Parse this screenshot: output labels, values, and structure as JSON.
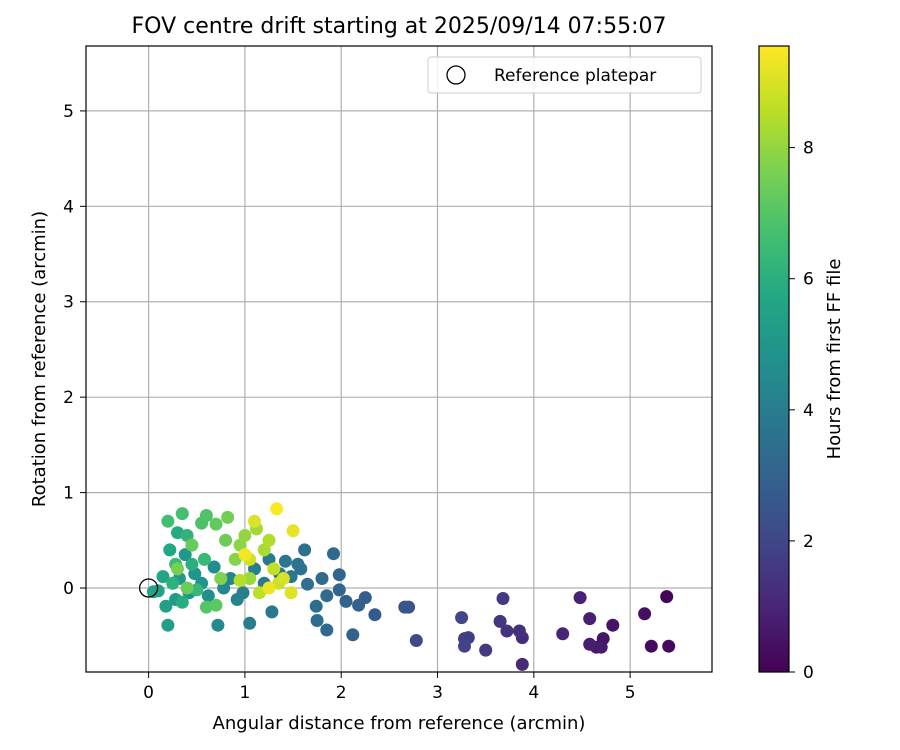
{
  "chart_data": {
    "type": "scatter",
    "title": "FOV centre drift starting at 2025/09/14 07:55:07",
    "xlabel": "Angular distance from reference (arcmin)",
    "ylabel": "Rotation from reference (arcmin)",
    "xlim": [
      -0.65,
      5.85
    ],
    "ylim": [
      -0.88,
      5.68
    ],
    "xticks": [
      0,
      1,
      2,
      3,
      4,
      5
    ],
    "yticks": [
      0,
      1,
      2,
      3,
      4,
      5
    ],
    "grid": true,
    "legend": {
      "location": "top-right",
      "entries": [
        "Reference platepar"
      ]
    },
    "reference_point": {
      "x": 0,
      "y": 0,
      "marker": "open-circle",
      "label": "Reference platepar"
    },
    "colorbar": {
      "label": "Hours from first FF file",
      "colormap": "viridis",
      "range": [
        0,
        9.55
      ],
      "ticks": [
        0,
        2,
        4,
        6,
        8
      ]
    },
    "points": [
      {
        "x": 5.38,
        "y": -0.09,
        "c": 0.1
      },
      {
        "x": 5.4,
        "y": -0.61,
        "c": 0.2
      },
      {
        "x": 5.22,
        "y": -0.61,
        "c": 0.3
      },
      {
        "x": 5.15,
        "y": -0.27,
        "c": 0.4
      },
      {
        "x": 4.82,
        "y": -0.39,
        "c": 0.5
      },
      {
        "x": 4.72,
        "y": -0.53,
        "c": 0.55
      },
      {
        "x": 4.65,
        "y": -0.62,
        "c": 0.6
      },
      {
        "x": 4.7,
        "y": -0.62,
        "c": 0.7
      },
      {
        "x": 4.58,
        "y": -0.59,
        "c": 0.8
      },
      {
        "x": 4.58,
        "y": -0.32,
        "c": 0.85
      },
      {
        "x": 4.48,
        "y": -0.1,
        "c": 0.9
      },
      {
        "x": 4.3,
        "y": -0.48,
        "c": 1.0
      },
      {
        "x": 3.88,
        "y": -0.8,
        "c": 1.1
      },
      {
        "x": 3.88,
        "y": -0.52,
        "c": 1.2
      },
      {
        "x": 3.85,
        "y": -0.45,
        "c": 1.3
      },
      {
        "x": 3.72,
        "y": -0.45,
        "c": 1.4
      },
      {
        "x": 3.65,
        "y": -0.35,
        "c": 1.5
      },
      {
        "x": 3.68,
        "y": -0.11,
        "c": 1.55
      },
      {
        "x": 3.5,
        "y": -0.65,
        "c": 1.6
      },
      {
        "x": 3.32,
        "y": -0.52,
        "c": 1.7
      },
      {
        "x": 3.28,
        "y": -0.53,
        "c": 1.8
      },
      {
        "x": 3.28,
        "y": -0.61,
        "c": 1.9
      },
      {
        "x": 3.25,
        "y": -0.31,
        "c": 2.0
      },
      {
        "x": 2.78,
        "y": -0.55,
        "c": 2.2
      },
      {
        "x": 2.7,
        "y": -0.2,
        "c": 2.4
      },
      {
        "x": 2.66,
        "y": -0.2,
        "c": 2.5
      },
      {
        "x": 2.35,
        "y": -0.28,
        "c": 2.7
      },
      {
        "x": 2.25,
        "y": -0.1,
        "c": 2.8
      },
      {
        "x": 2.18,
        "y": -0.18,
        "c": 2.9
      },
      {
        "x": 2.12,
        "y": -0.49,
        "c": 3.0
      },
      {
        "x": 2.05,
        "y": -0.14,
        "c": 3.0
      },
      {
        "x": 1.98,
        "y": 0.14,
        "c": 3.1
      },
      {
        "x": 1.98,
        "y": -0.02,
        "c": 3.1
      },
      {
        "x": 1.92,
        "y": 0.36,
        "c": 3.2
      },
      {
        "x": 1.85,
        "y": -0.44,
        "c": 3.2
      },
      {
        "x": 1.85,
        "y": -0.08,
        "c": 3.3
      },
      {
        "x": 1.8,
        "y": 0.1,
        "c": 3.3
      },
      {
        "x": 1.75,
        "y": -0.34,
        "c": 3.4
      },
      {
        "x": 1.74,
        "y": -0.19,
        "c": 3.4
      },
      {
        "x": 1.65,
        "y": 0.04,
        "c": 3.5
      },
      {
        "x": 1.62,
        "y": 0.4,
        "c": 3.5
      },
      {
        "x": 1.58,
        "y": 0.2,
        "c": 3.6
      },
      {
        "x": 1.55,
        "y": 0.25,
        "c": 3.6
      },
      {
        "x": 1.48,
        "y": 0.12,
        "c": 3.7
      },
      {
        "x": 1.42,
        "y": 0.28,
        "c": 3.7
      },
      {
        "x": 1.36,
        "y": 0.15,
        "c": 3.8
      },
      {
        "x": 1.28,
        "y": -0.25,
        "c": 3.8
      },
      {
        "x": 1.25,
        "y": 0.3,
        "c": 3.9
      },
      {
        "x": 1.2,
        "y": 0.05,
        "c": 3.9
      },
      {
        "x": 1.1,
        "y": 0.2,
        "c": 4.0
      },
      {
        "x": 1.05,
        "y": -0.37,
        "c": 4.0
      },
      {
        "x": 0.98,
        "y": -0.05,
        "c": 4.1
      },
      {
        "x": 0.92,
        "y": -0.12,
        "c": 4.2
      },
      {
        "x": 0.85,
        "y": 0.1,
        "c": 4.3
      },
      {
        "x": 0.78,
        "y": 0.0,
        "c": 4.4
      },
      {
        "x": 0.72,
        "y": -0.39,
        "c": 4.5
      },
      {
        "x": 0.68,
        "y": 0.22,
        "c": 4.6
      },
      {
        "x": 0.62,
        "y": -0.08,
        "c": 4.7
      },
      {
        "x": 0.55,
        "y": 0.05,
        "c": 4.8
      },
      {
        "x": 0.48,
        "y": 0.15,
        "c": 4.9
      },
      {
        "x": 0.42,
        "y": -0.05,
        "c": 5.0
      },
      {
        "x": 0.38,
        "y": 0.35,
        "c": 5.0
      },
      {
        "x": 0.32,
        "y": 0.1,
        "c": 5.1
      },
      {
        "x": 0.28,
        "y": -0.12,
        "c": 5.2
      },
      {
        "x": 0.2,
        "y": -0.39,
        "c": 5.3
      },
      {
        "x": 0.18,
        "y": -0.19,
        "c": 5.4
      },
      {
        "x": 0.1,
        "y": -0.03,
        "c": 5.5
      },
      {
        "x": 0.05,
        "y": -0.04,
        "c": 5.5
      },
      {
        "x": 0.15,
        "y": 0.12,
        "c": 5.6
      },
      {
        "x": 0.22,
        "y": 0.4,
        "c": 5.7
      },
      {
        "x": 0.3,
        "y": 0.58,
        "c": 5.8
      },
      {
        "x": 0.35,
        "y": -0.15,
        "c": 5.9
      },
      {
        "x": 0.45,
        "y": 0.25,
        "c": 6.0
      },
      {
        "x": 0.25,
        "y": 0.05,
        "c": 6.1
      },
      {
        "x": 0.4,
        "y": 0.55,
        "c": 6.2
      },
      {
        "x": 0.5,
        "y": -0.02,
        "c": 6.3
      },
      {
        "x": 0.58,
        "y": 0.3,
        "c": 6.4
      },
      {
        "x": 0.28,
        "y": 0.25,
        "c": 6.5
      },
      {
        "x": 0.2,
        "y": 0.7,
        "c": 6.6
      },
      {
        "x": 0.35,
        "y": 0.78,
        "c": 6.7
      },
      {
        "x": 0.55,
        "y": 0.68,
        "c": 6.8
      },
      {
        "x": 0.6,
        "y": 0.76,
        "c": 6.9
      },
      {
        "x": 0.6,
        "y": -0.2,
        "c": 7.0
      },
      {
        "x": 0.7,
        "y": -0.18,
        "c": 7.1
      },
      {
        "x": 0.7,
        "y": 0.67,
        "c": 7.2
      },
      {
        "x": 0.45,
        "y": 0.45,
        "c": 7.3
      },
      {
        "x": 0.4,
        "y": 0.0,
        "c": 7.35
      },
      {
        "x": 0.8,
        "y": 0.5,
        "c": 7.4
      },
      {
        "x": 0.82,
        "y": 0.74,
        "c": 7.5
      },
      {
        "x": 0.3,
        "y": 0.2,
        "c": 7.6
      },
      {
        "x": 0.75,
        "y": 0.1,
        "c": 7.7
      },
      {
        "x": 0.9,
        "y": 0.3,
        "c": 7.8
      },
      {
        "x": 0.95,
        "y": 0.45,
        "c": 7.9
      },
      {
        "x": 1.0,
        "y": 0.55,
        "c": 8.0
      },
      {
        "x": 1.05,
        "y": 0.1,
        "c": 8.1
      },
      {
        "x": 1.12,
        "y": 0.62,
        "c": 8.2
      },
      {
        "x": 1.2,
        "y": 0.4,
        "c": 8.3
      },
      {
        "x": 1.25,
        "y": 0.5,
        "c": 8.4
      },
      {
        "x": 0.95,
        "y": 0.08,
        "c": 8.5
      },
      {
        "x": 1.15,
        "y": -0.05,
        "c": 8.6
      },
      {
        "x": 1.3,
        "y": 0.2,
        "c": 8.7
      },
      {
        "x": 1.35,
        "y": 0.05,
        "c": 8.8
      },
      {
        "x": 1.05,
        "y": 0.3,
        "c": 8.9
      },
      {
        "x": 1.4,
        "y": 0.1,
        "c": 9.0
      },
      {
        "x": 1.1,
        "y": 0.7,
        "c": 9.05
      },
      {
        "x": 1.48,
        "y": -0.05,
        "c": 9.1
      },
      {
        "x": 1.5,
        "y": 0.6,
        "c": 9.2
      },
      {
        "x": 1.25,
        "y": 0.0,
        "c": 9.3
      },
      {
        "x": 1.0,
        "y": 0.35,
        "c": 9.4
      },
      {
        "x": 1.33,
        "y": 0.83,
        "c": 9.5
      }
    ]
  }
}
